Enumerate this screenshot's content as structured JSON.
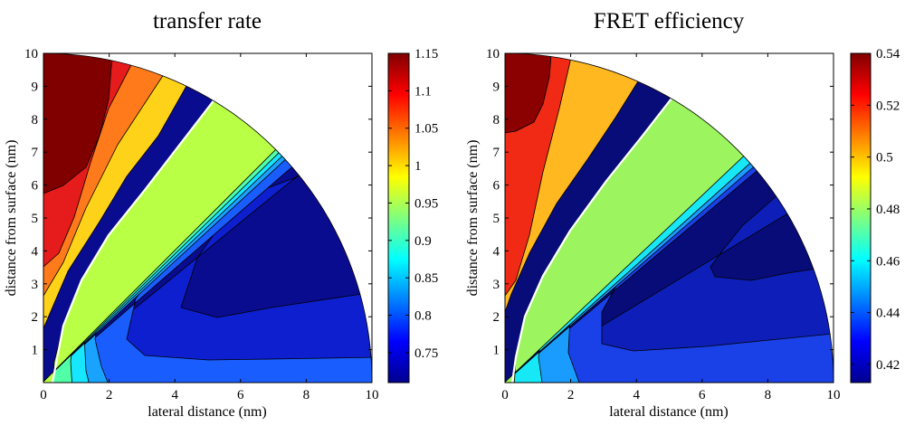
{
  "chart_data": [
    {
      "type": "heatmap",
      "subtype": "filled-contour",
      "title": "transfer rate",
      "xlabel": "lateral distance (nm)",
      "ylabel": "distance from surface (nm)",
      "xlim": [
        0,
        10
      ],
      "ylim": [
        0,
        10
      ],
      "x_ticks": [
        0,
        2,
        4,
        6,
        8,
        10
      ],
      "x_tick_labels": [
        "0",
        "2",
        "4",
        "6",
        "8",
        "10"
      ],
      "y_ticks": [
        1,
        2,
        3,
        4,
        5,
        6,
        7,
        8,
        9,
        10
      ],
      "y_tick_labels": [
        "1",
        "2",
        "3",
        "4",
        "5",
        "6",
        "7",
        "8",
        "9",
        "10"
      ],
      "domain": "quarter disc, radius 10 nm",
      "white_contour_level": 1.0,
      "colorbar": {
        "min": 0.71,
        "max": 1.15,
        "ticks": [
          0.75,
          0.8,
          0.85,
          0.9,
          0.95,
          1,
          1.05,
          1.1,
          1.15
        ],
        "tick_labels": [
          "0.75",
          "0.8",
          "0.85",
          "0.9",
          "0.95",
          "1",
          "1.05",
          "1.1",
          "1.15"
        ]
      },
      "bands": [
        {
          "color": "#800000",
          "value_range": [
            1.125,
            1.15
          ]
        },
        {
          "color": "#e61b1b",
          "value_range": [
            1.075,
            1.125
          ]
        },
        {
          "color": "#ff7a1a",
          "value_range": [
            1.025,
            1.075
          ]
        },
        {
          "color": "#ffd21a",
          "value_range": [
            1.0,
            1.025
          ]
        },
        {
          "color": "#b8ff45",
          "value_range": [
            0.95,
            1.0
          ]
        },
        {
          "color": "#52ffa9",
          "value_range": [
            0.9,
            0.95
          ]
        },
        {
          "color": "#17e6ff",
          "value_range": [
            0.85,
            0.9
          ]
        },
        {
          "color": "#1aa2ff",
          "value_range": [
            0.8,
            0.85
          ]
        },
        {
          "color": "#1a5dff",
          "value_range": [
            0.75,
            0.8
          ]
        },
        {
          "color": "#0d1fce",
          "value_range": [
            0.72,
            0.75
          ]
        },
        {
          "color": "#0a0c8f",
          "value_range": [
            0.71,
            0.72
          ]
        }
      ]
    },
    {
      "type": "heatmap",
      "subtype": "filled-contour",
      "title": "FRET efficiency",
      "xlabel": "lateral distance (nm)",
      "ylabel": "distance from surface (nm)",
      "xlim": [
        0,
        10
      ],
      "ylim": [
        0,
        10
      ],
      "x_ticks": [
        0,
        2,
        4,
        6,
        8,
        10
      ],
      "x_tick_labels": [
        "0",
        "2",
        "4",
        "6",
        "8",
        "10"
      ],
      "y_ticks": [
        1,
        2,
        3,
        4,
        5,
        6,
        7,
        8,
        9,
        10
      ],
      "y_tick_labels": [
        "1",
        "2",
        "3",
        "4",
        "5",
        "6",
        "7",
        "8",
        "9",
        "10"
      ],
      "domain": "quarter disc, radius 10 nm",
      "white_contour_level": 0.5,
      "colorbar": {
        "min": 0.413,
        "max": 0.54,
        "ticks": [
          0.42,
          0.44,
          0.46,
          0.48,
          0.5,
          0.52,
          0.54
        ],
        "tick_labels": [
          "0.42",
          "0.44",
          "0.46",
          "0.48",
          "0.5",
          "0.52",
          "0.54"
        ]
      },
      "bands": [
        {
          "color": "#8b0000",
          "value_range": [
            0.53,
            0.54
          ]
        },
        {
          "color": "#f02a14",
          "value_range": [
            0.51,
            0.53
          ]
        },
        {
          "color": "#ffb81f",
          "value_range": [
            0.5,
            0.51
          ]
        },
        {
          "color": "#9cf55e",
          "value_range": [
            0.48,
            0.5
          ]
        },
        {
          "color": "#17e8f5",
          "value_range": [
            0.46,
            0.48
          ]
        },
        {
          "color": "#1a9cff",
          "value_range": [
            0.44,
            0.46
          ]
        },
        {
          "color": "#1a40e8",
          "value_range": [
            0.43,
            0.44
          ]
        },
        {
          "color": "#0d1fb8",
          "value_range": [
            0.42,
            0.43
          ]
        },
        {
          "color": "#080c78",
          "value_range": [
            0.413,
            0.42
          ]
        }
      ]
    }
  ]
}
